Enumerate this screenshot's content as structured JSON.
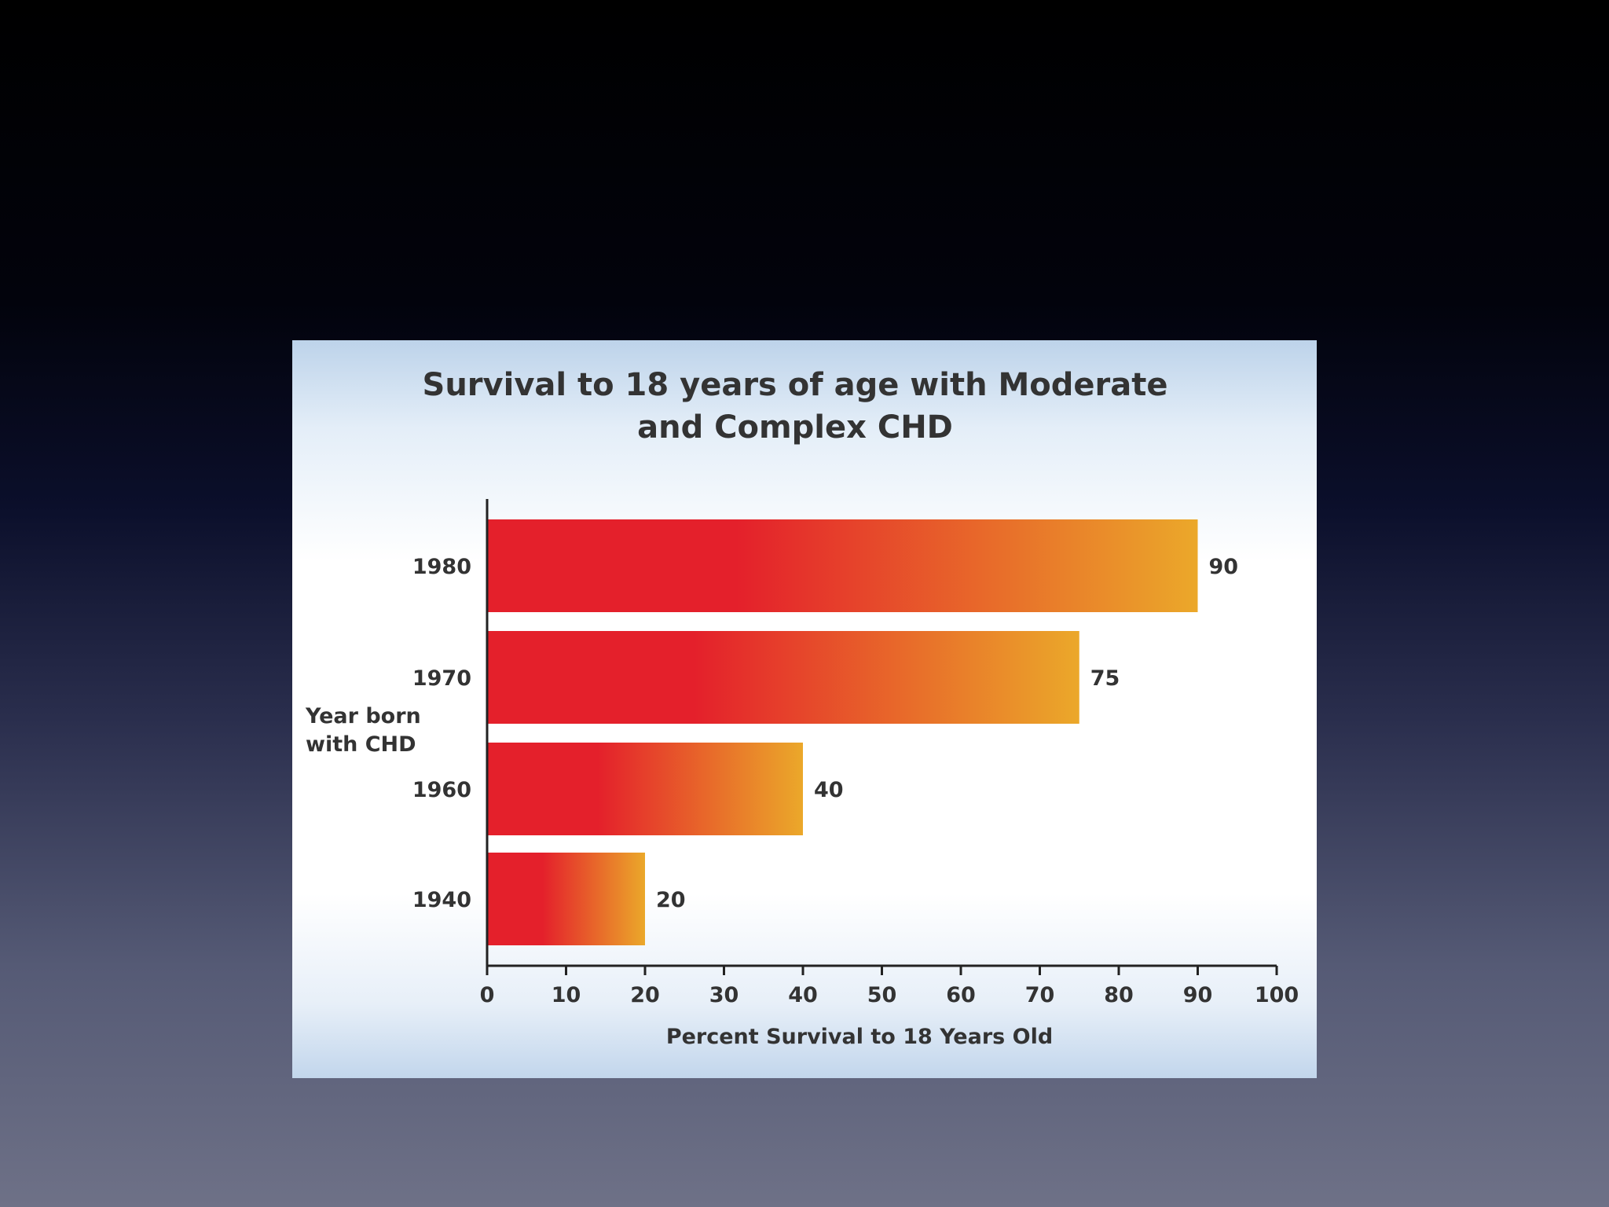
{
  "colors": {
    "bar_start": "#e4202b",
    "bar_end": "#eba82a",
    "text": "#333333",
    "axis": "#222222"
  },
  "chart_data": {
    "type": "bar",
    "orientation": "horizontal",
    "title": "Survival to 18 years of age with Moderate and Complex CHD",
    "title_lines": [
      "Survival to 18 years of age with Moderate",
      "and Complex CHD"
    ],
    "categories": [
      "1980",
      "1970",
      "1960",
      "1940"
    ],
    "values": [
      90,
      75,
      40,
      20
    ],
    "data_labels": [
      "90",
      "75",
      "40",
      "20"
    ],
    "xlabel": "Percent Survival to 18 Years Old",
    "ylabel_lines": [
      "Year born",
      "with CHD"
    ],
    "xlim": [
      0,
      100
    ],
    "xticks": [
      0,
      10,
      20,
      30,
      40,
      50,
      60,
      70,
      80,
      90,
      100
    ],
    "grid": false,
    "legend": "none"
  }
}
